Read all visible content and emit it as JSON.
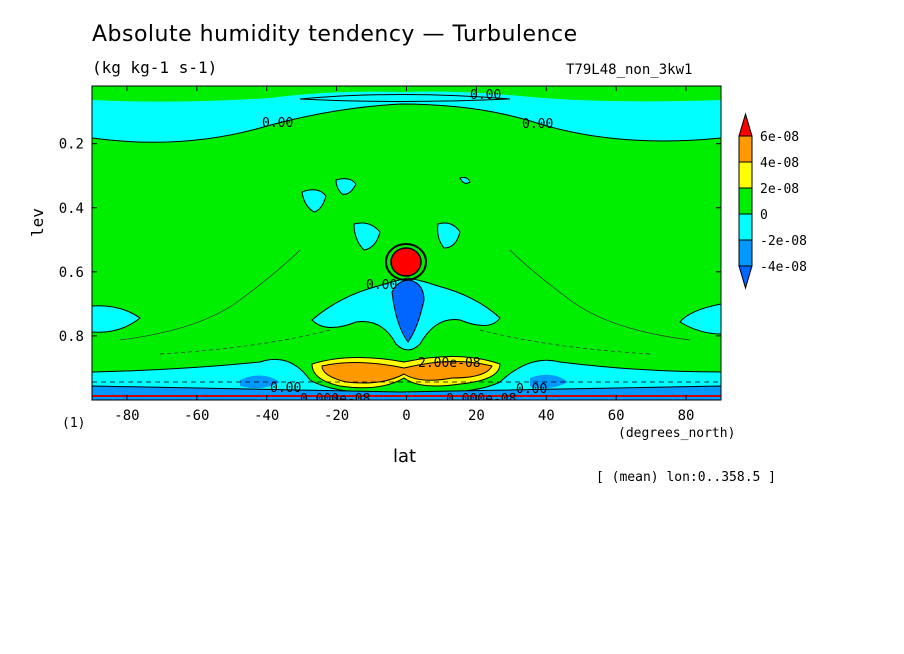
{
  "chart_data": {
    "type": "heatmap",
    "title": "Absolute humidity tendency — Turbulence",
    "units": "(kg kg-1 s-1)",
    "run_name": "T79L48_non_3kw1",
    "xlabel": "lat",
    "x_units": "(degrees_north)",
    "ylabel": "lev",
    "axis_note": "(1)",
    "footnote": "[ (mean) lon:0..358.5 ]",
    "xlim": [
      -90,
      90
    ],
    "ylim": [
      1.0,
      0.02
    ],
    "x_ticks": [
      -80,
      -60,
      -40,
      -20,
      0,
      20,
      40,
      60,
      80
    ],
    "y_ticks": [
      0.2,
      0.4,
      0.6,
      0.8
    ],
    "colorbar": {
      "levels": [
        -4e-08,
        -2e-08,
        0,
        2e-08,
        4e-08,
        6e-08
      ],
      "labels": [
        "6e-08",
        "4e-08",
        "2e-08",
        "0",
        "-2e-08",
        "-4e-08"
      ],
      "colors": [
        "#ff0000",
        "#ff9900",
        "#ffff00",
        "#00ee00",
        "#00ffff",
        "#0099ff",
        "#0066ff"
      ]
    },
    "contour_labels": [
      "0.00",
      "0.00",
      "0.00",
      "0.00",
      "2.00e-08",
      "0.00",
      "0.000e-08",
      "0.000e-08",
      "0.00"
    ],
    "regions": [
      {
        "desc": "background",
        "value_class": "0 to 2e-08"
      },
      {
        "desc": "upper levels poleward bands",
        "value_class": "-2e-08 to 0"
      },
      {
        "desc": "equatorial maximum near lev 0.55",
        "value_class": ">6e-08"
      },
      {
        "desc": "equatorial minimum near lev 0.7",
        "value_class": "-4e-08 to -2e-08"
      },
      {
        "desc": "subtropical maximum near lev 0.9",
        "value_class": "4e-08 to 6e-08"
      }
    ],
    "colors": {
      "positive_strong": "#ff0000",
      "background": "#00ee00",
      "negative": "#00ffff",
      "negative_strong": "#0066ff"
    }
  }
}
